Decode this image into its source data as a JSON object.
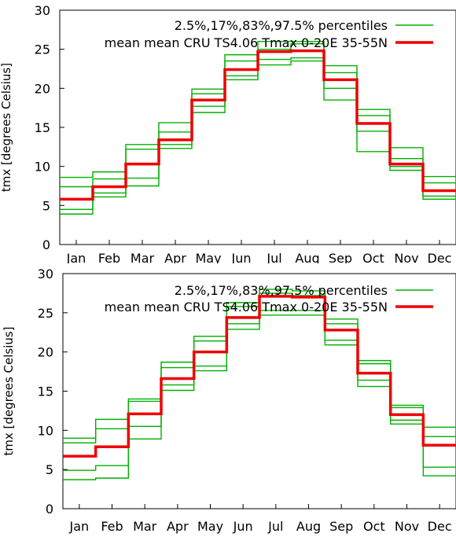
{
  "chart_data": [
    {
      "type": "line",
      "step": true,
      "ylabel": "tmx [degrees Celsius]",
      "xlabel": "",
      "ylim": [
        0,
        30
      ],
      "yticks": [
        0,
        5,
        10,
        15,
        20,
        25,
        30
      ],
      "categories": [
        "Jan",
        "Feb",
        "Mar",
        "Apr",
        "May",
        "Jun",
        "Jul",
        "Aug",
        "Sep",
        "Oct",
        "Nov",
        "Dec"
      ],
      "legend_position": "top-right",
      "series": [
        {
          "name": "2.5%,17%,83%,97.5% percentiles",
          "color": "#00b000",
          "role": "percentile",
          "values": [
            3.9,
            6.1,
            7.5,
            12.3,
            16.9,
            21.1,
            23.0,
            23.5,
            18.5,
            11.9,
            9.5,
            5.8
          ]
        },
        {
          "name": "",
          "color": "#00b000",
          "role": "percentile",
          "values": [
            4.5,
            6.6,
            8.5,
            12.8,
            17.7,
            21.6,
            23.7,
            23.9,
            20.0,
            14.5,
            10.0,
            6.2
          ]
        },
        {
          "name": "",
          "color": "#00b000",
          "role": "percentile",
          "values": [
            7.4,
            8.4,
            12.2,
            14.4,
            19.3,
            23.5,
            25.0,
            25.7,
            22.0,
            16.5,
            11.0,
            7.9
          ]
        },
        {
          "name": "",
          "color": "#00b000",
          "role": "percentile",
          "values": [
            8.6,
            9.3,
            12.8,
            15.6,
            19.9,
            24.3,
            26.0,
            26.0,
            22.9,
            17.3,
            12.4,
            8.7
          ]
        },
        {
          "name": "mean mean CRU TS4.06 Tmax 0-20E 35-55N",
          "color": "#ee0000",
          "role": "mean",
          "values": [
            5.8,
            7.4,
            10.3,
            13.4,
            18.5,
            22.4,
            24.7,
            24.8,
            21.1,
            15.5,
            10.3,
            6.9
          ]
        }
      ]
    },
    {
      "type": "line",
      "step": true,
      "ylabel": "tmx [degrees Celsius]",
      "xlabel": "",
      "ylim": [
        0,
        30
      ],
      "yticks": [
        0,
        5,
        10,
        15,
        20,
        25,
        30
      ],
      "categories": [
        "Jan",
        "Feb",
        "Mar",
        "Apr",
        "May",
        "Jun",
        "Jul",
        "Aug",
        "Sep",
        "Oct",
        "Nov",
        "Dec"
      ],
      "legend_position": "top-right",
      "series": [
        {
          "name": "2.5%,17%,83%,97.5% percentiles",
          "color": "#00b000",
          "role": "percentile",
          "values": [
            3.7,
            3.9,
            8.9,
            15.1,
            17.6,
            22.9,
            24.7,
            24.7,
            20.9,
            15.6,
            10.8,
            4.2
          ]
        },
        {
          "name": "",
          "color": "#00b000",
          "role": "percentile",
          "values": [
            4.9,
            5.5,
            10.5,
            15.8,
            18.2,
            23.6,
            25.3,
            25.3,
            21.5,
            16.4,
            11.3,
            5.3
          ]
        },
        {
          "name": "",
          "color": "#00b000",
          "role": "percentile",
          "values": [
            8.4,
            10.2,
            13.7,
            18.0,
            21.4,
            25.8,
            27.5,
            27.2,
            23.6,
            18.5,
            12.9,
            9.2
          ]
        },
        {
          "name": "",
          "color": "#00b000",
          "role": "percentile",
          "values": [
            9.0,
            11.4,
            14.0,
            18.7,
            22.0,
            26.3,
            28.0,
            27.8,
            24.2,
            18.9,
            13.2,
            10.4
          ]
        },
        {
          "name": "mean mean CRU TS4.06 Tmax 0-20E 35-55N",
          "color": "#ee0000",
          "role": "mean",
          "values": [
            6.7,
            7.9,
            12.1,
            16.6,
            20.0,
            24.4,
            27.1,
            27.0,
            22.8,
            17.3,
            12.0,
            8.1
          ]
        }
      ]
    }
  ]
}
